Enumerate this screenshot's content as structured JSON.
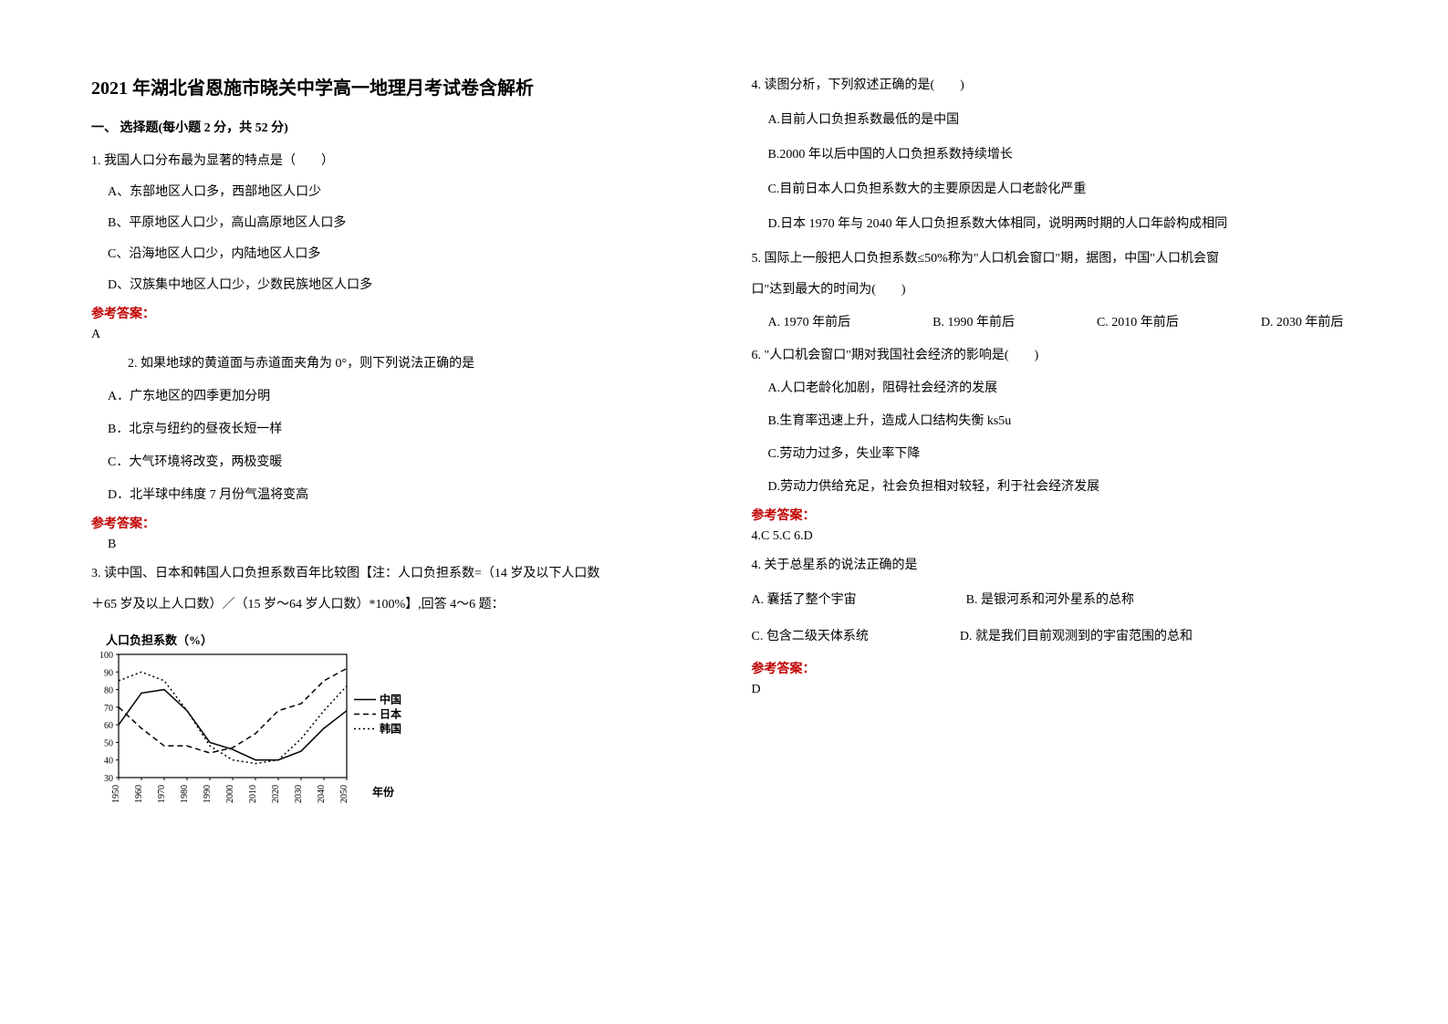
{
  "title": "2021 年湖北省恩施市晓关中学高一地理月考试卷含解析",
  "section1_heading": "一、 选择题(每小题 2 分，共 52 分)",
  "q1": {
    "stem": "1. 我国人口分布最为显著的特点是（　　）",
    "a": "A、东部地区人口多，西部地区人口少",
    "b": "B、平原地区人口少，高山高原地区人口多",
    "c": "C、沿海地区人口少，内陆地区人口多",
    "d": "D、汉族集中地区人口少，少数民族地区人口多",
    "answer_label": "参考答案：",
    "answer": "A"
  },
  "q2": {
    "stem": "2. 如果地球的黄道面与赤道面夹角为 0°，则下列说法正确的是",
    "a": "A．广东地区的四季更加分明",
    "b": "B．北京与纽约的昼夜长短一样",
    "c": "C．大气环境将改变，两极变暖",
    "d": "D．北半球中纬度 7 月份气温将变高",
    "answer_label": "参考答案：",
    "answer": "B"
  },
  "q3": {
    "stem_l1": "3. 读中国、日本和韩国人口负担系数百年比较图【注：人口负担系数=（14 岁及以下人口数",
    "stem_l2": "＋65 岁及以上人口数）／（15 岁～64 岁人口数）*100%】,回答 4～6 题："
  },
  "chart": {
    "type": "line",
    "title": "人口负担系数（%）",
    "xlabel": "年份",
    "xticks": [
      "1950",
      "1960",
      "1970",
      "1980",
      "1990",
      "2000",
      "2010",
      "2020",
      "2030",
      "2040",
      "2050"
    ],
    "yticks": [
      30,
      40,
      50,
      60,
      70,
      80,
      90,
      100
    ],
    "ylim": [
      30,
      100
    ],
    "background_color": "#ffffff",
    "axis_color": "#000000",
    "series": [
      {
        "name": "中国",
        "style": "solid",
        "color": "#000000",
        "values": [
          60,
          78,
          80,
          68,
          50,
          46,
          40,
          40,
          45,
          58,
          68
        ]
      },
      {
        "name": "日本",
        "style": "dashed",
        "color": "#000000",
        "values": [
          70,
          58,
          48,
          48,
          44,
          47,
          55,
          68,
          72,
          85,
          92
        ]
      },
      {
        "name": "韩国",
        "style": "dotted",
        "color": "#000000",
        "values": [
          85,
          90,
          85,
          68,
          48,
          40,
          38,
          40,
          52,
          68,
          82
        ]
      }
    ],
    "legend": [
      "中国",
      "日本",
      "韩国"
    ]
  },
  "q4": {
    "stem": "4. 读图分析，下列叙述正确的是(　　)",
    "a": "A.目前人口负担系数最低的是中国",
    "b": "B.2000 年以后中国的人口负担系数持续增长",
    "c": "C.目前日本人口负担系数大的主要原因是人口老龄化严重",
    "d": "D.日本 1970 年与 2040 年人口负担系数大体相同，说明两时期的人口年龄构成相同"
  },
  "q5": {
    "stem_l1": "5. 国际上一般把人口负担系数≤50%称为\"人口机会窗口\"期，据图，中国\"人口机会窗",
    "stem_l2": "口\"达到最大的时间为(　　)",
    "a": "A. 1970 年前后",
    "b": "B. 1990 年前后",
    "c": "C. 2010 年前后",
    "d": "D. 2030 年前后"
  },
  "q6": {
    "stem": "6. \"人口机会窗口\"期对我国社会经济的影响是(　　)",
    "a": "A.人口老龄化加剧，阻碍社会经济的发展",
    "b": "B.生育率迅速上升，造成人口结构失衡 ks5u",
    "c": "C.劳动力过多，失业率下降",
    "d": "D.劳动力供给充足，社会负担相对较轻，利于社会经济发展",
    "answer_label": "参考答案：",
    "answer": "4.C  5.C  6.D"
  },
  "q4b": {
    "stem": "4. 关于总星系的说法正确的是",
    "a": "A. 囊括了整个宇宙",
    "b": "B. 是银河系和河外星系的总称",
    "c": "C. 包含二级天体系统",
    "d": "D. 就是我们目前观测到的宇宙范围的总和",
    "answer_label": "参考答案：",
    "answer": "D"
  }
}
